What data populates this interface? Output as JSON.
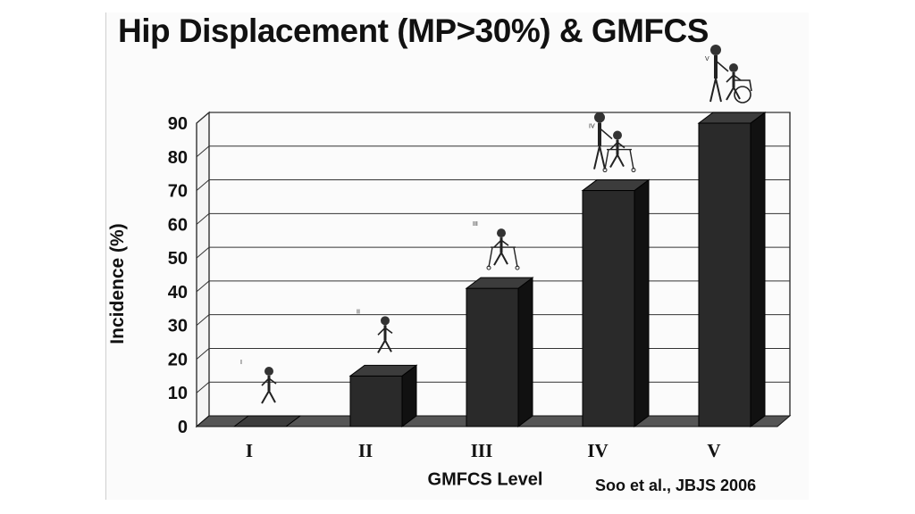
{
  "chart_data": {
    "type": "bar",
    "title": "Hip Displacement (MP>30%) & GMFCS",
    "xlabel": "GMFCS Level",
    "ylabel": "Incidence (%)",
    "categories": [
      "I",
      "II",
      "III",
      "IV",
      "V"
    ],
    "values": [
      0,
      15,
      41,
      70,
      90
    ],
    "ylim": [
      0,
      90
    ],
    "yticks": [
      0,
      10,
      20,
      30,
      40,
      50,
      60,
      70,
      80,
      90
    ],
    "grid": true,
    "bar_color": "#2a2a2a",
    "annotations": [
      "I",
      "II",
      "III",
      "IV",
      "V"
    ]
  },
  "credit": "Soo et al., JBJS 2006"
}
